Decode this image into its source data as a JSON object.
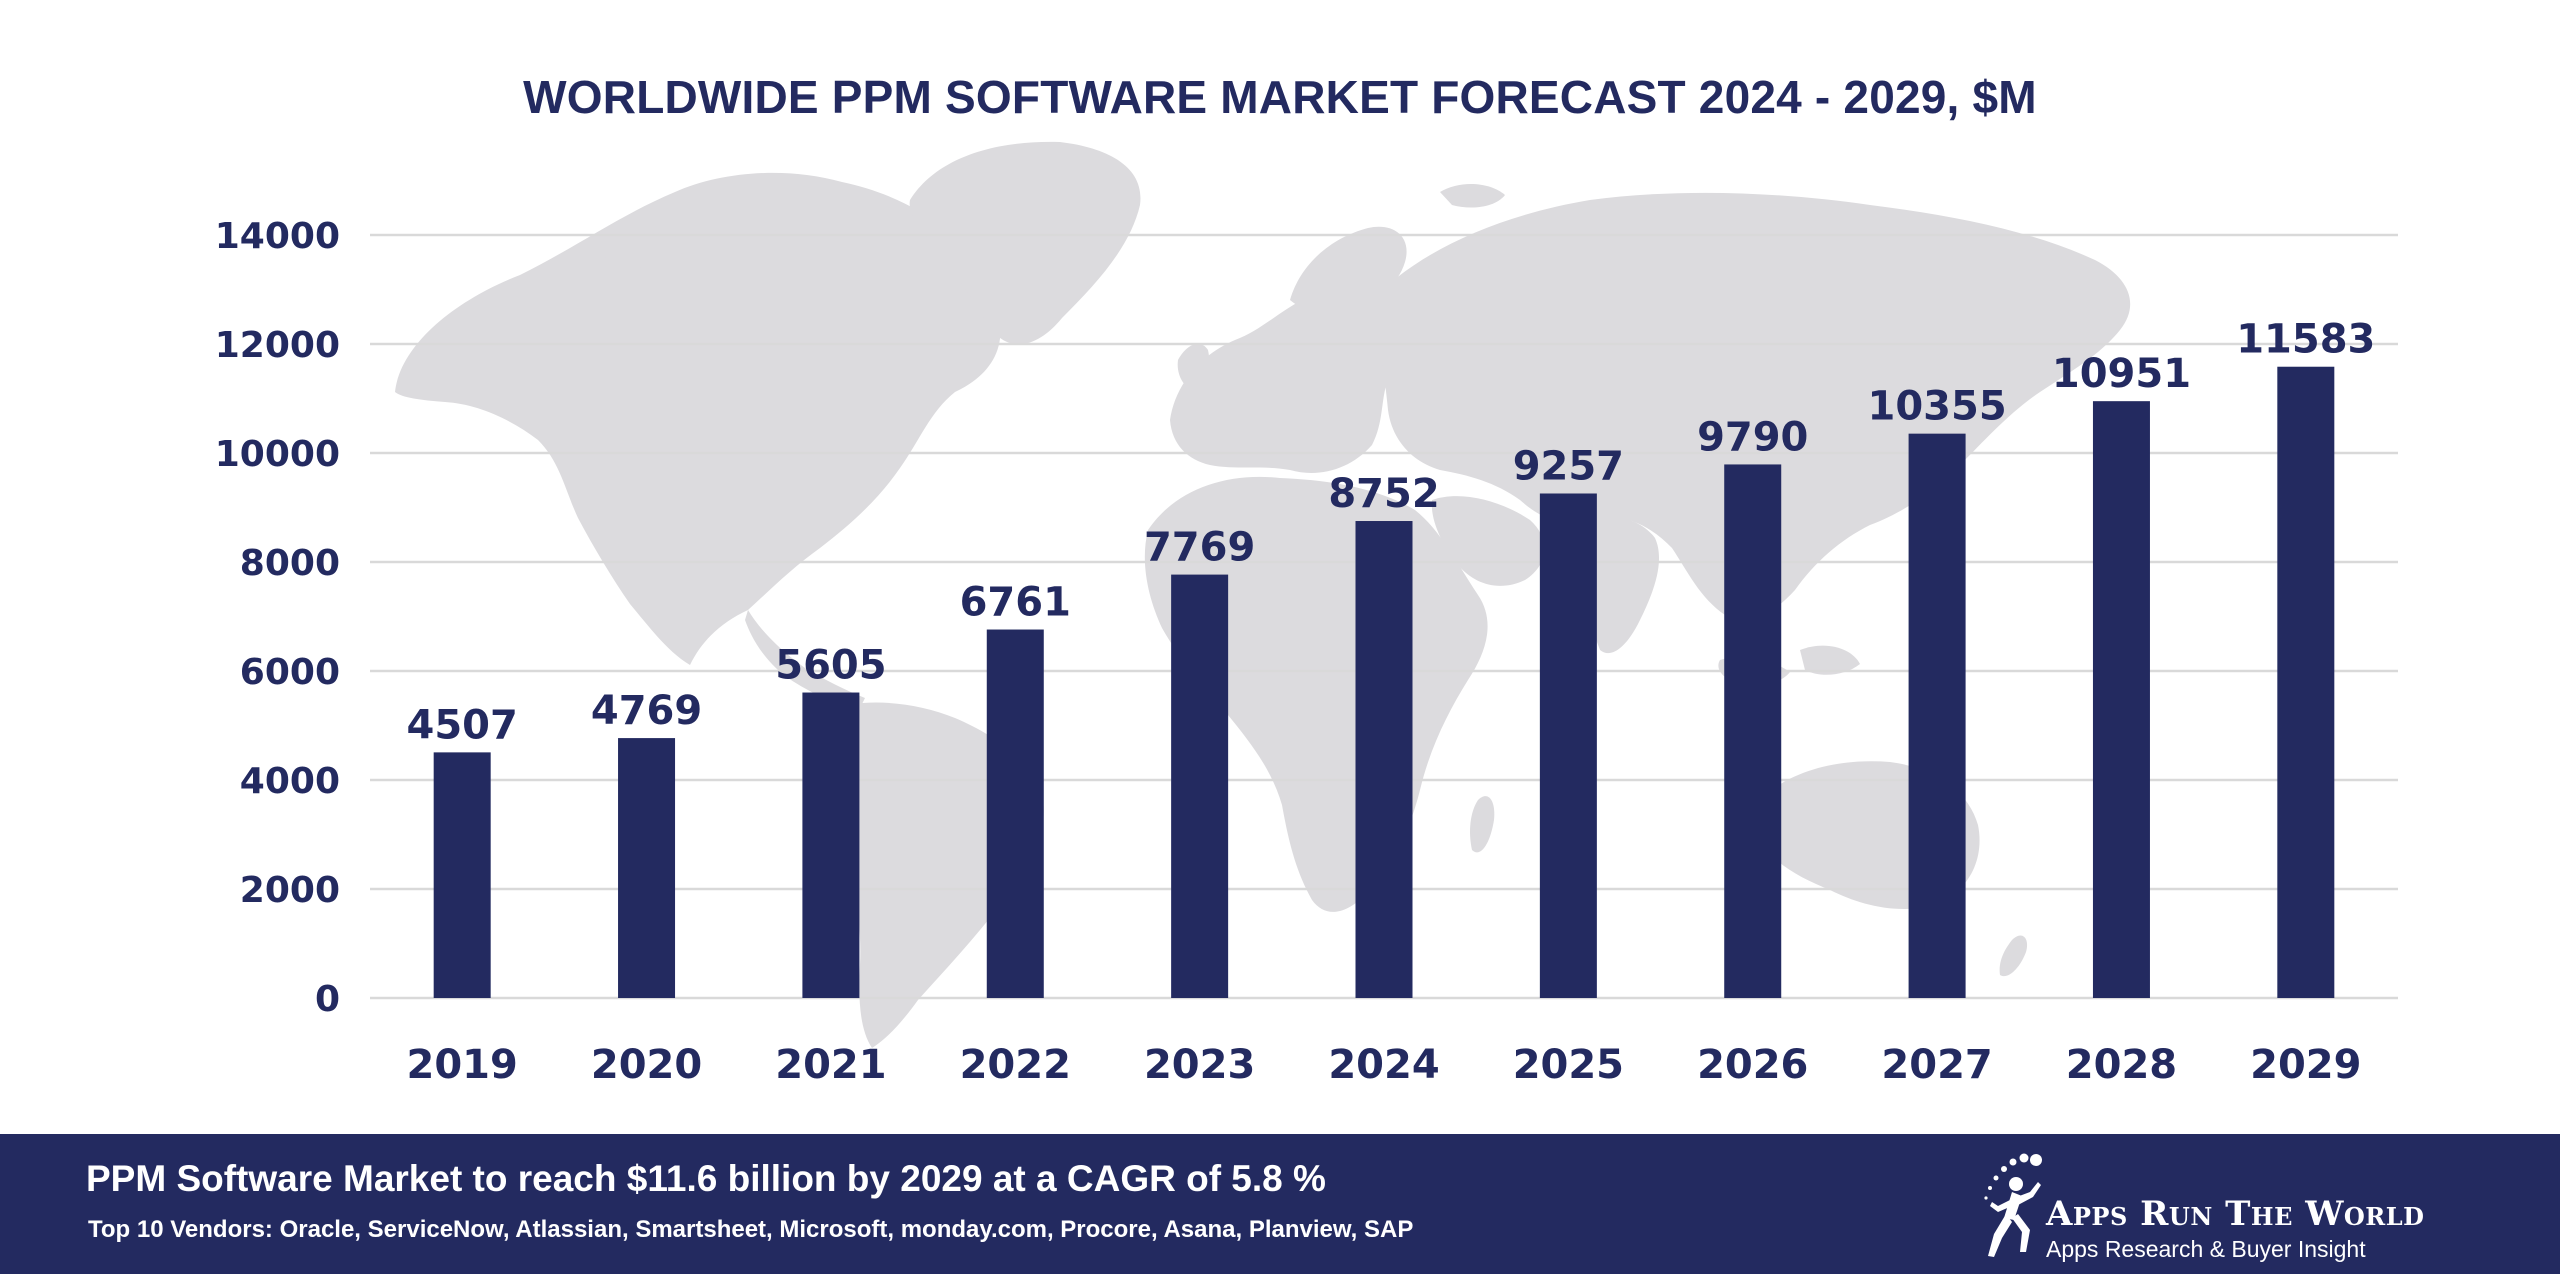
{
  "chart_data": {
    "type": "bar",
    "title": "WORLDWIDE PPM SOFTWARE MARKET FORECAST 2024 - 2029, $M",
    "categories": [
      "2019",
      "2020",
      "2021",
      "2022",
      "2023",
      "2024",
      "2025",
      "2026",
      "2027",
      "2028",
      "2029"
    ],
    "values": [
      4507,
      4769,
      5605,
      6761,
      7769,
      8752,
      9257,
      9790,
      10355,
      10951,
      11583
    ],
    "ylim": [
      0,
      14000
    ],
    "yticks": [
      0,
      2000,
      4000,
      6000,
      8000,
      10000,
      12000,
      14000
    ],
    "xlabel": "",
    "ylabel": "",
    "grid": true,
    "bar_color": "#232a60",
    "grid_color": "#d9d9d9"
  },
  "footer": {
    "headline": "PPM Software Market to reach $11.6 billion by 2029 at a CAGR of 5.8 %",
    "vendors": "Top 10 Vendors: Oracle, ServiceNow, Atlassian, Smartsheet, Microsoft, monday.com, Procore, Asana, Planview, SAP",
    "background_color": "#232a60"
  },
  "brand": {
    "name": "Apps Run The World",
    "tagline": "Apps Research & Buyer Insight",
    "icon": "runner-icon"
  },
  "colors": {
    "text": "#232a60",
    "map": "#dcdbde"
  }
}
